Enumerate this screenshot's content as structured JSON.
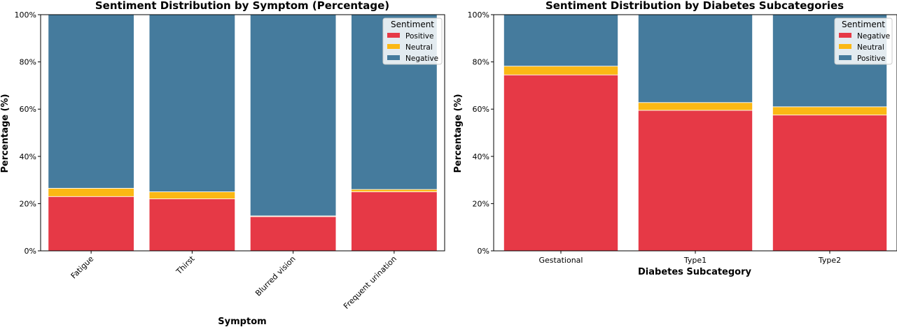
{
  "colors": {
    "positive": "#e63946",
    "neutral": "#fbb814",
    "negative": "#457b9d",
    "axis": "#000000"
  },
  "chart_data": [
    {
      "type": "bar",
      "stacked": true,
      "title": "Sentiment Distribution by Symptom (Percentage)",
      "xlabel": "Symptom",
      "ylabel": "Percentage (%)",
      "ylim": [
        0,
        100
      ],
      "yticks": [
        "0%",
        "20%",
        "40%",
        "60%",
        "80%",
        "100%"
      ],
      "categories": [
        "Fatigue",
        "Thirst",
        "Blurred vision",
        "Frequent urination"
      ],
      "series": [
        {
          "name": "Positive",
          "color": "#e63946",
          "values": [
            23,
            22,
            14.5,
            25
          ]
        },
        {
          "name": "Neutral",
          "color": "#fbb814",
          "values": [
            3.5,
            3,
            0.3,
            1
          ]
        },
        {
          "name": "Negative",
          "color": "#457b9d",
          "values": [
            73.5,
            75,
            85.2,
            74
          ]
        }
      ],
      "legend": {
        "title": "Sentiment",
        "position": "top-right"
      }
    },
    {
      "type": "bar",
      "stacked": true,
      "title": "Sentiment Distribution by Diabetes Subcategories",
      "xlabel": "Diabetes Subcategory",
      "ylabel": "Percentage (%)",
      "ylim": [
        0,
        100
      ],
      "yticks": [
        "0%",
        "20%",
        "40%",
        "60%",
        "80%",
        "100%"
      ],
      "categories": [
        "Gestational",
        "Type1",
        "Type2"
      ],
      "series": [
        {
          "name": "Negative",
          "color": "#e63946",
          "values": [
            74.5,
            59.5,
            57.5
          ]
        },
        {
          "name": "Neutral",
          "color": "#fbb814",
          "values": [
            3.7,
            3.3,
            3.5
          ]
        },
        {
          "name": "Positive",
          "color": "#457b9d",
          "values": [
            21.8,
            37.2,
            39
          ]
        }
      ],
      "legend": {
        "title": "Sentiment",
        "position": "top-right"
      }
    }
  ]
}
